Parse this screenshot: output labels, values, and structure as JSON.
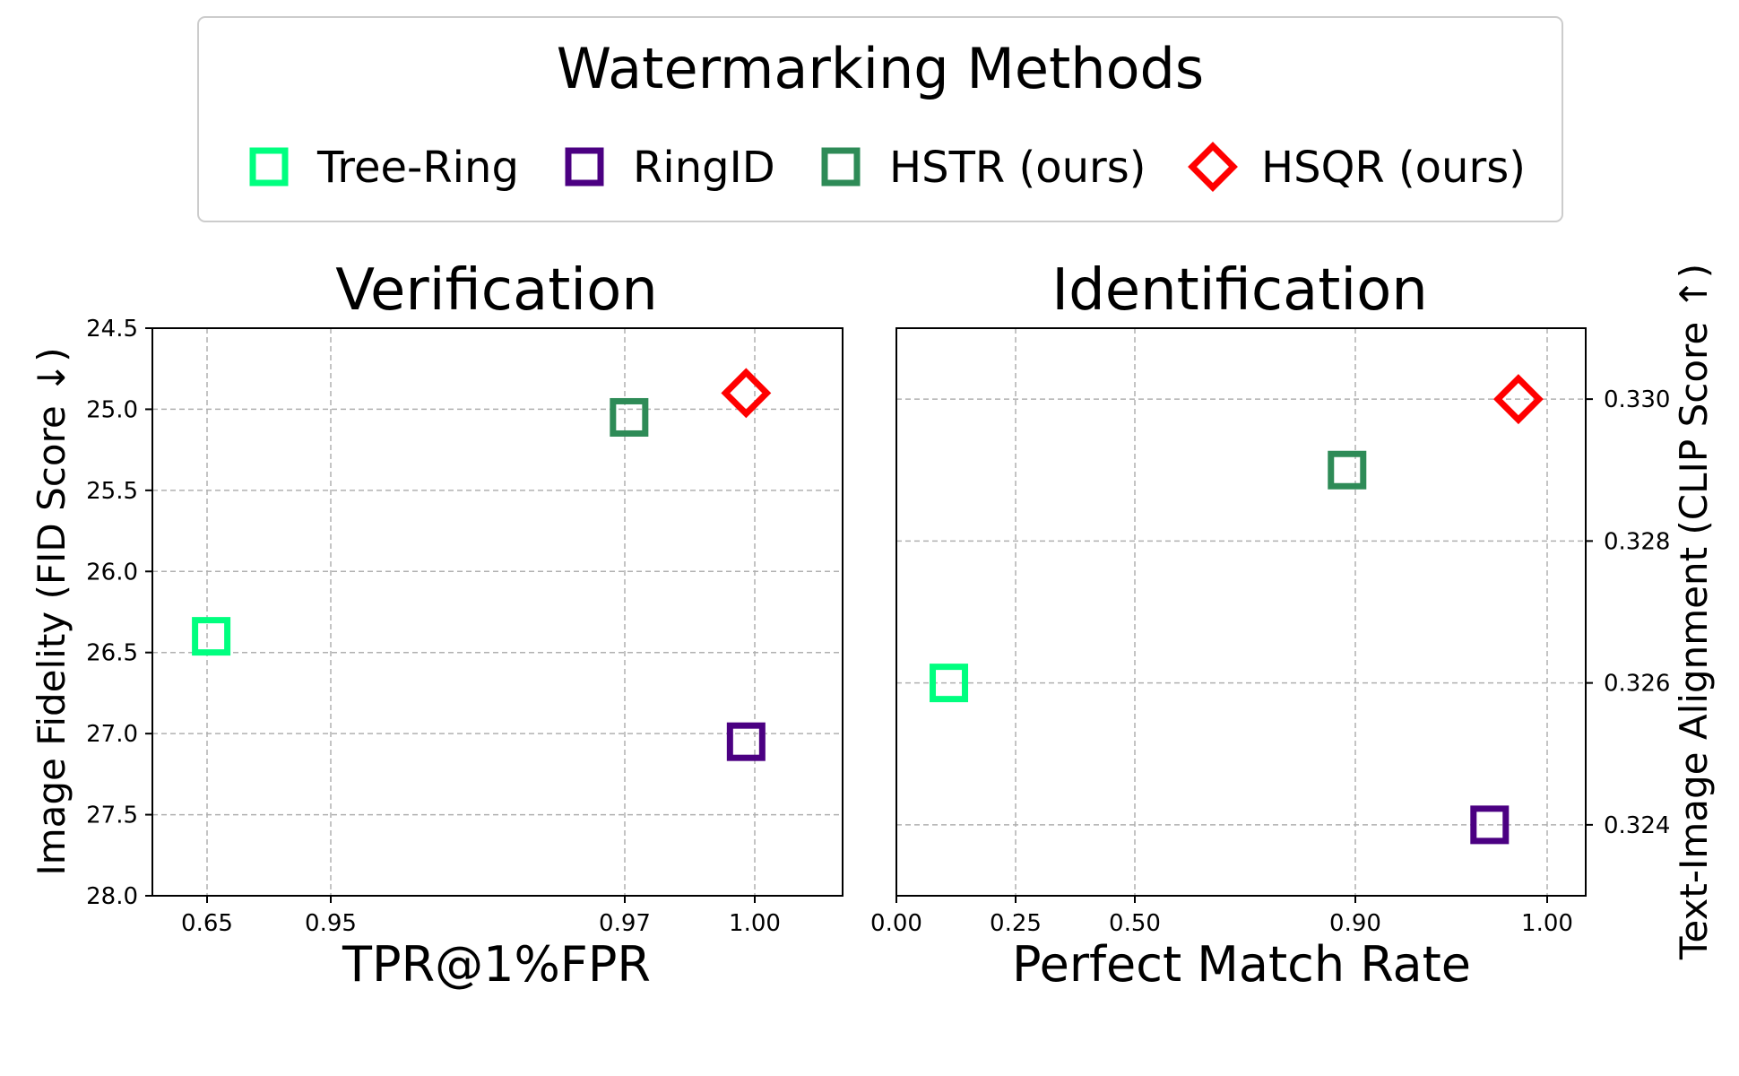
{
  "legend": {
    "title": "Watermarking Methods",
    "entries": [
      {
        "label": "Tree-Ring",
        "color": "#00ff7f",
        "marker": "square"
      },
      {
        "label": "RingID",
        "color": "#4b0082",
        "marker": "square"
      },
      {
        "label": "HSTR (ours)",
        "color": "#2e8b57",
        "marker": "square"
      },
      {
        "label": "HSQR (ours)",
        "color": "#ff0000",
        "marker": "diamond"
      }
    ]
  },
  "chart_data": [
    {
      "type": "scatter",
      "title": "Verification",
      "xlabel": "TPR@1%FPR",
      "ylabel": "Image Fidelity (FID Score ↓)",
      "x_axis_note": "broken/compressed axis; ticks evenly labeled as shown",
      "x_ticks": [
        "0.65",
        "0.95",
        "0.97",
        "1.00"
      ],
      "y_ticks": [
        "24.5",
        "25.0",
        "25.5",
        "26.0",
        "26.5",
        "27.0",
        "27.5",
        "28.0"
      ],
      "ylim": [
        28.0,
        24.5
      ],
      "y_inverted": true,
      "grid": true,
      "series": [
        {
          "name": "Tree-Ring",
          "x": 0.66,
          "y": 26.4
        },
        {
          "name": "RingID",
          "x": 0.998,
          "y": 27.05
        },
        {
          "name": "HSTR (ours)",
          "x": 0.971,
          "y": 25.05
        },
        {
          "name": "HSQR (ours)",
          "x": 0.998,
          "y": 24.9
        }
      ]
    },
    {
      "type": "scatter",
      "title": "Identification",
      "xlabel": "Perfect Match Rate",
      "ylabel": "Text-Image Alignment (CLIP Score ↑)",
      "y_axis_side": "right",
      "x_axis_note": "broken/compressed axis; ticks evenly labeled as shown",
      "x_ticks": [
        "0.00",
        "0.25",
        "0.50",
        "0.90",
        "1.00"
      ],
      "y_ticks": [
        "0.324",
        "0.326",
        "0.328",
        "0.330"
      ],
      "ylim": [
        0.323,
        0.331
      ],
      "grid": true,
      "series": [
        {
          "name": "Tree-Ring",
          "x": 0.11,
          "y": 0.326
        },
        {
          "name": "RingID",
          "x": 0.97,
          "y": 0.324
        },
        {
          "name": "HSTR (ours)",
          "x": 0.885,
          "y": 0.329
        },
        {
          "name": "HSQR (ours)",
          "x": 0.985,
          "y": 0.33
        }
      ]
    }
  ]
}
